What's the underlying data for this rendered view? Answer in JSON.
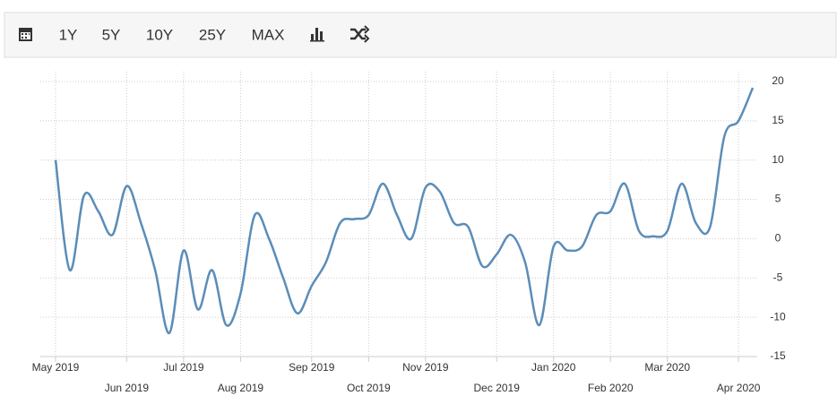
{
  "toolbar": {
    "ranges": [
      "1Y",
      "5Y",
      "10Y",
      "25Y",
      "MAX"
    ]
  },
  "chart_data": {
    "type": "line",
    "categories": [
      null,
      null,
      null,
      null,
      null,
      "Jun 2019",
      null,
      null,
      null,
      "Jul 2019",
      null,
      null,
      null,
      "Aug 2019",
      null,
      null,
      null,
      null,
      "Sep 2019",
      null,
      null,
      null,
      "Oct 2019",
      null,
      null,
      null,
      "Nov 2019",
      null,
      null,
      null,
      null,
      "Dec 2019",
      null,
      null,
      null,
      "Jan 2020",
      null,
      null,
      null,
      "Feb 2020",
      null,
      null,
      null,
      "Mar 2020",
      null,
      null,
      null,
      null,
      "Apr 2020",
      null
    ],
    "first_label": "May 2019",
    "series": [
      {
        "color": "#5b8db8",
        "values": [
          10,
          -4,
          5.5,
          3.5,
          0.5,
          6.7,
          2,
          -4,
          -12,
          -1.5,
          -9,
          -4,
          -11,
          -7,
          3,
          0,
          -5,
          -9.5,
          -6,
          -3,
          2,
          2.5,
          3,
          7,
          3,
          0,
          6.5,
          6,
          2,
          1.5,
          -3.5,
          -2,
          0.5,
          -3,
          -11,
          -1,
          -1.5,
          -1,
          3,
          3.5,
          7,
          1,
          0.3,
          1,
          7,
          2,
          1.5,
          13,
          15,
          19.2
        ]
      }
    ],
    "ylim": [
      -15,
      20
    ],
    "yticks": [
      -15,
      -10,
      -5,
      0,
      5,
      10,
      15,
      20
    ],
    "grid": true
  }
}
